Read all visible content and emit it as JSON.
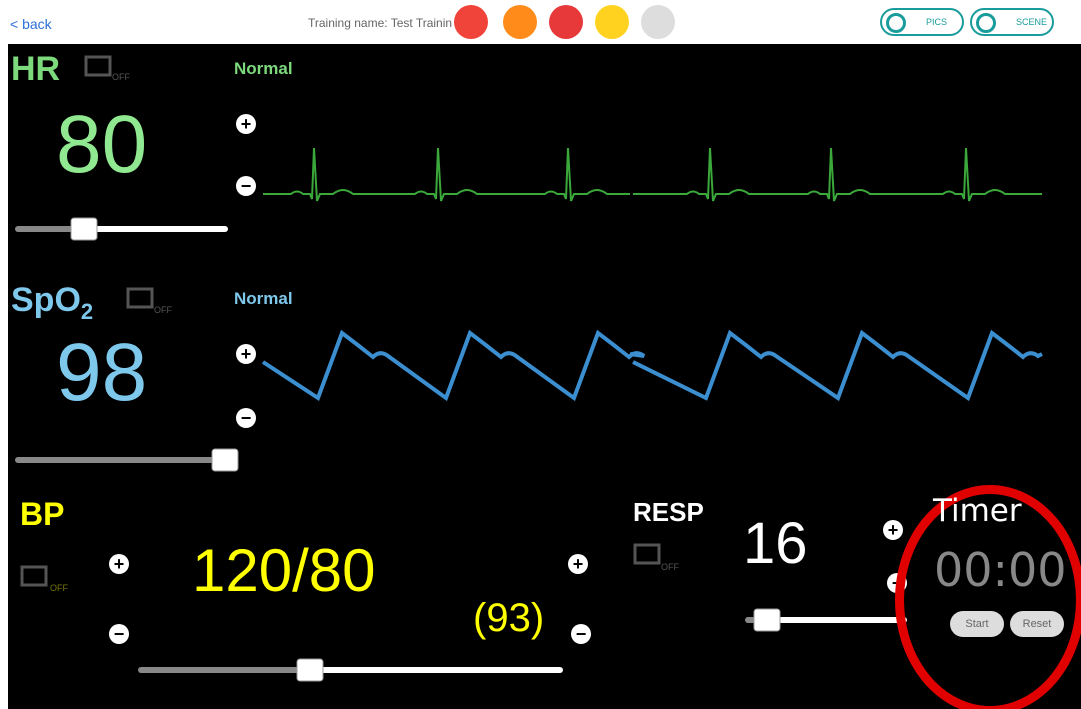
{
  "header": {
    "back": "< back",
    "training_name": "Training name: Test Trainin",
    "toggles": [
      "PICS",
      "SCENE"
    ]
  },
  "hr": {
    "label": "HR",
    "sensor": "OFF",
    "value": "80",
    "status": "Normal"
  },
  "spo2": {
    "label": "SpO",
    "subscript": "2",
    "sensor": "OFF",
    "value": "98",
    "status": "Normal"
  },
  "bp": {
    "label": "BP",
    "sensor": "OFF",
    "value": "120/80",
    "mean": "(93)"
  },
  "resp": {
    "label": "RESP",
    "sensor": "OFF",
    "value": "16"
  },
  "timer": {
    "title": "Timer",
    "time": "00:00",
    "buttons": [
      "Start",
      "Reset"
    ]
  }
}
